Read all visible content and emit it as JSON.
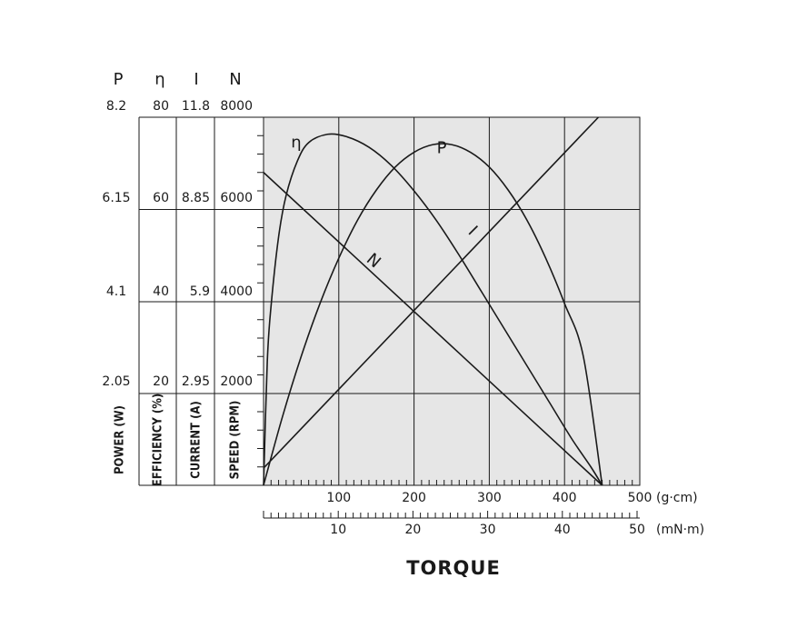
{
  "chart_data": {
    "type": "line",
    "title": "TORQUE",
    "x_primary": {
      "unit": "(g·cm)",
      "ticks": [
        100,
        200,
        300,
        400,
        500
      ],
      "range": [
        0,
        500
      ],
      "minor_step": 10
    },
    "x_secondary": {
      "unit": "(mN·m)",
      "ticks": [
        10,
        20,
        30,
        40,
        50
      ],
      "range": [
        0,
        50
      ],
      "minor_step": 1
    },
    "y_axes": [
      {
        "symbol": "P",
        "label": "POWER (W)",
        "max": 8.2,
        "ticks": [
          "8.2",
          "6.15",
          "4.1",
          "2.05"
        ],
        "values": [
          8.2,
          6.15,
          4.1,
          2.05
        ]
      },
      {
        "symbol": "η",
        "label": "EFFICIENCY (%)",
        "max": 80,
        "ticks": [
          "80",
          "60",
          "40",
          "20"
        ],
        "values": [
          80,
          60,
          40,
          20
        ]
      },
      {
        "symbol": "I",
        "label": "CURRENT (A)",
        "max": 11.8,
        "ticks": [
          "11.8",
          "8.85",
          "5.9",
          "2.95"
        ],
        "values": [
          11.8,
          8.85,
          5.9,
          2.95
        ]
      },
      {
        "symbol": "N",
        "label": "SPEED (RPM)",
        "max": 8000,
        "ticks": [
          "8000",
          "6000",
          "4000",
          "2000"
        ],
        "values": [
          8000,
          6000,
          4000,
          2000
        ]
      }
    ],
    "grid": true,
    "series": [
      {
        "name": "N",
        "axis": "N",
        "x": [
          0,
          450
        ],
        "y": [
          6800,
          0
        ]
      },
      {
        "name": "I",
        "axis": "I",
        "x": [
          0,
          445
        ],
        "y": [
          0.55,
          11.8
        ]
      },
      {
        "name": "P",
        "axis": "P",
        "x": [
          0,
          25,
          50,
          75,
          100,
          125,
          150,
          175,
          200,
          225,
          250,
          275,
          300,
          325,
          350,
          375,
          400,
          425,
          450
        ],
        "y": [
          0,
          1.52,
          2.87,
          4.05,
          5.06,
          5.91,
          6.58,
          7.09,
          7.42,
          7.59,
          7.59,
          7.42,
          7.09,
          6.58,
          5.91,
          5.06,
          4.05,
          2.87,
          0
        ]
      },
      {
        "name": "η",
        "axis": "η",
        "x": [
          0,
          5,
          10,
          20,
          30,
          45,
          60,
          85,
          110,
          140,
          170,
          200,
          230,
          260,
          290,
          320,
          350,
          380,
          410,
          435,
          450
        ],
        "y": [
          0,
          27,
          39,
          54,
          63,
          70.5,
          74.5,
          76.3,
          75.8,
          73.5,
          69.5,
          64,
          57.5,
          50,
          42,
          34,
          26,
          18,
          10,
          4,
          0
        ]
      }
    ],
    "curve_labels": [
      {
        "text": "η",
        "series": "η"
      },
      {
        "text": "P",
        "series": "P"
      },
      {
        "text": "I",
        "series": "I"
      },
      {
        "text": "N",
        "series": "N"
      }
    ]
  }
}
